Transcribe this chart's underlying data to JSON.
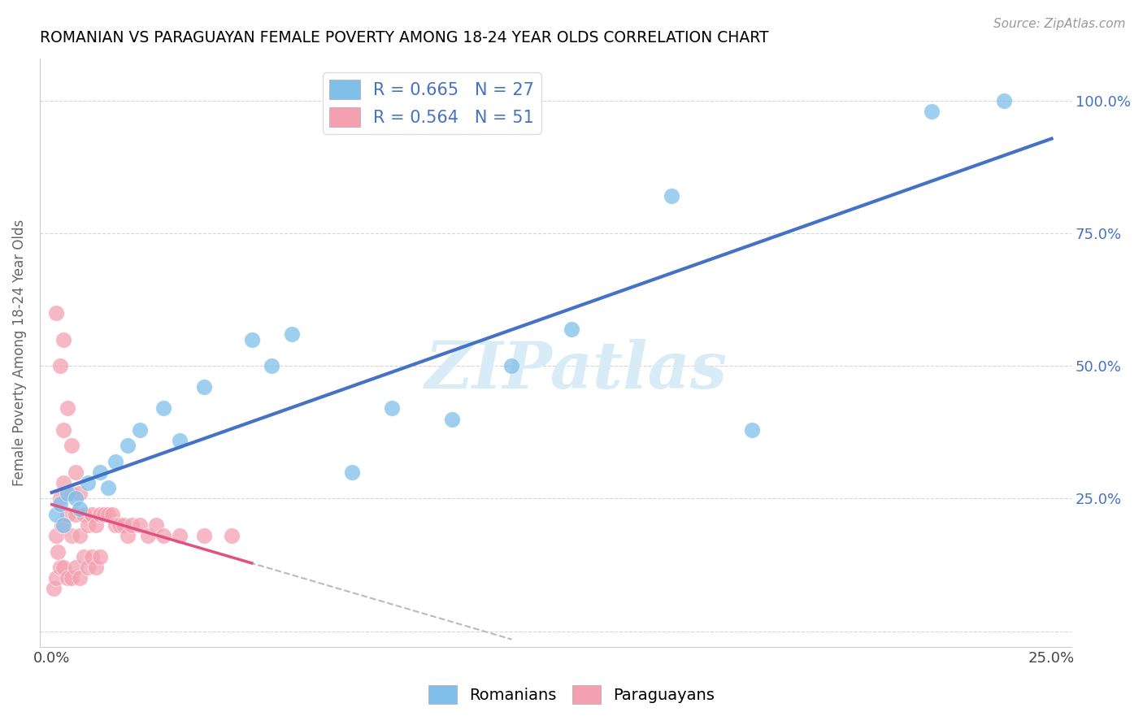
{
  "title": "ROMANIAN VS PARAGUAYAN FEMALE POVERTY AMONG 18-24 YEAR OLDS CORRELATION CHART",
  "source": "Source: ZipAtlas.com",
  "ylabel": "Female Poverty Among 18-24 Year Olds",
  "xlim": [
    -0.003,
    0.255
  ],
  "ylim": [
    -0.03,
    1.08
  ],
  "ytick_values": [
    0.0,
    0.25,
    0.5,
    0.75,
    1.0
  ],
  "ytick_labels_right": [
    "",
    "25.0%",
    "50.0%",
    "75.0%",
    "100.0%"
  ],
  "xtick_values": [
    0.0,
    0.05,
    0.1,
    0.15,
    0.2,
    0.25
  ],
  "xtick_labels": [
    "0.0%",
    "",
    "",
    "",
    "",
    "25.0%"
  ],
  "legend_blue": "R = 0.665   N = 27",
  "legend_pink": "R = 0.564   N = 51",
  "blue_scatter_color": "#7fbfea",
  "pink_scatter_color": "#f4a0b0",
  "blue_line_color": "#4472C4",
  "pink_line_color": "#e05080",
  "pink_dash_color": "#cccccc",
  "watermark_color": "#d8ecf8",
  "rom_x": [
    0.001,
    0.002,
    0.003,
    0.004,
    0.006,
    0.007,
    0.009,
    0.012,
    0.014,
    0.016,
    0.019,
    0.022,
    0.028,
    0.032,
    0.038,
    0.05,
    0.055,
    0.06,
    0.075,
    0.085,
    0.1,
    0.115,
    0.13,
    0.155,
    0.175,
    0.22,
    0.238
  ],
  "rom_y": [
    0.22,
    0.24,
    0.2,
    0.26,
    0.25,
    0.23,
    0.28,
    0.3,
    0.27,
    0.32,
    0.35,
    0.38,
    0.42,
    0.36,
    0.46,
    0.55,
    0.5,
    0.56,
    0.3,
    0.42,
    0.4,
    0.5,
    0.57,
    0.82,
    0.38,
    0.98,
    1.0
  ],
  "par_x": [
    0.0005,
    0.001,
    0.001,
    0.001,
    0.0015,
    0.002,
    0.002,
    0.002,
    0.0025,
    0.003,
    0.003,
    0.003,
    0.003,
    0.004,
    0.004,
    0.004,
    0.005,
    0.005,
    0.005,
    0.005,
    0.006,
    0.006,
    0.006,
    0.007,
    0.007,
    0.007,
    0.008,
    0.008,
    0.009,
    0.009,
    0.01,
    0.01,
    0.011,
    0.011,
    0.012,
    0.012,
    0.013,
    0.014,
    0.015,
    0.016,
    0.017,
    0.018,
    0.019,
    0.02,
    0.022,
    0.024,
    0.026,
    0.028,
    0.032,
    0.038,
    0.045
  ],
  "par_y": [
    0.08,
    0.6,
    0.18,
    0.1,
    0.15,
    0.5,
    0.25,
    0.12,
    0.2,
    0.55,
    0.38,
    0.28,
    0.12,
    0.42,
    0.22,
    0.1,
    0.35,
    0.26,
    0.18,
    0.1,
    0.3,
    0.22,
    0.12,
    0.26,
    0.18,
    0.1,
    0.22,
    0.14,
    0.2,
    0.12,
    0.22,
    0.14,
    0.2,
    0.12,
    0.22,
    0.14,
    0.22,
    0.22,
    0.22,
    0.2,
    0.2,
    0.2,
    0.18,
    0.2,
    0.2,
    0.18,
    0.2,
    0.18,
    0.18,
    0.18,
    0.18
  ]
}
